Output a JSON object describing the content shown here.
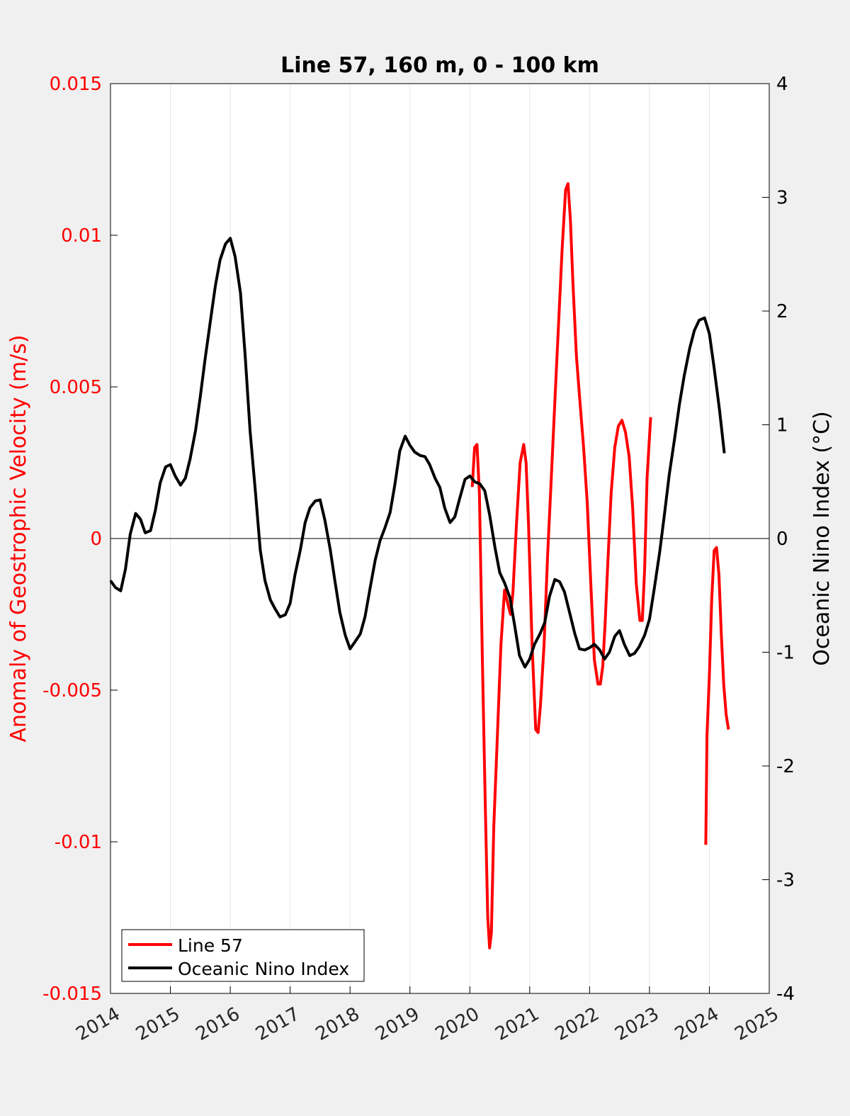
{
  "chart_data": {
    "type": "line",
    "title": "Line 57, 160 m, 0 - 100 km",
    "xlabel": "",
    "ylabel_left": "Anomaly of Geostrophic Velocity (m/s)",
    "ylabel_right": "Oceanic Nino Index (°C)",
    "xlim": [
      2014,
      2025
    ],
    "ylim_left": [
      -0.015,
      0.015
    ],
    "ylim_right": [
      -4,
      4
    ],
    "x_ticks": [
      "2014",
      "2015",
      "2016",
      "2017",
      "2018",
      "2019",
      "2020",
      "2021",
      "2022",
      "2023",
      "2024",
      "2025"
    ],
    "y_left_ticks": [
      "0.015",
      "0.01",
      "0.005",
      "0",
      "-0.005",
      "-0.01",
      "-0.015"
    ],
    "y_right_ticks": [
      "4",
      "3",
      "2",
      "1",
      "0",
      "-1",
      "-2",
      "-3",
      "-4"
    ],
    "grid": "vertical x-grid on",
    "zero_line": true,
    "legend_position": "bottom-left",
    "colors": {
      "line57": "#ff0000",
      "oni": "#000000",
      "left_axis": "#ff0000",
      "right_axis": "#000000"
    },
    "series": [
      {
        "name": "Line 57",
        "axis": "left",
        "color": "#ff0000",
        "segments": [
          {
            "x": [
              2020.04,
              2020.08,
              2020.12,
              2020.16,
              2020.21,
              2020.26,
              2020.3,
              2020.33,
              2020.36,
              2020.4,
              2020.46,
              2020.52,
              2020.58,
              2020.64,
              2020.68,
              2020.72,
              2020.78,
              2020.84,
              2020.9,
              2020.94,
              2020.98,
              2021.04,
              2021.1,
              2021.14,
              2021.18,
              2021.24,
              2021.3,
              2021.36,
              2021.42,
              2021.48,
              2021.54,
              2021.6,
              2021.64,
              2021.68,
              2021.72,
              2021.78,
              2021.84,
              2021.9,
              2021.96,
              2022.02,
              2022.08,
              2022.14,
              2022.18,
              2022.22,
              2022.26,
              2022.3,
              2022.36,
              2022.42,
              2022.48,
              2022.54,
              2022.6,
              2022.66,
              2022.72,
              2022.78,
              2022.84,
              2022.88,
              2022.92,
              2022.96,
              2023.02
            ],
            "y": [
              0.0017,
              0.003,
              0.0031,
              0.0015,
              -0.004,
              -0.009,
              -0.0125,
              -0.0135,
              -0.013,
              -0.0095,
              -0.0065,
              -0.0035,
              -0.0017,
              -0.0022,
              -0.0025,
              -0.0018,
              0.0005,
              0.0025,
              0.0031,
              0.0025,
              0.0005,
              -0.0035,
              -0.0063,
              -0.0064,
              -0.0055,
              -0.0035,
              -0.0005,
              0.002,
              0.0045,
              0.007,
              0.0095,
              0.0115,
              0.0117,
              0.0105,
              0.0085,
              0.006,
              0.0045,
              0.003,
              0.0012,
              -0.0015,
              -0.004,
              -0.0048,
              -0.0048,
              -0.0042,
              -0.0028,
              -0.001,
              0.0015,
              0.003,
              0.0037,
              0.0039,
              0.0035,
              0.0027,
              0.001,
              -0.0015,
              -0.0027,
              -0.0027,
              -0.001,
              0.002,
              0.004
            ]
          },
          {
            "x": [
              2023.94,
              2023.96,
              2024.0,
              2024.04,
              2024.08,
              2024.12,
              2024.16,
              2024.2,
              2024.24,
              2024.28,
              2024.32
            ],
            "y": [
              -0.0101,
              -0.0065,
              -0.0045,
              -0.002,
              -0.0004,
              -0.0003,
              -0.0012,
              -0.0032,
              -0.0048,
              -0.0058,
              -0.0063
            ]
          }
        ]
      },
      {
        "name": "Oceanic Nino Index",
        "axis": "right",
        "color": "#000000",
        "x": [
          2014.0,
          2014.08,
          2014.17,
          2014.25,
          2014.33,
          2014.42,
          2014.5,
          2014.58,
          2014.67,
          2014.75,
          2014.83,
          2014.92,
          2015.0,
          2015.08,
          2015.17,
          2015.25,
          2015.33,
          2015.42,
          2015.5,
          2015.58,
          2015.67,
          2015.75,
          2015.83,
          2015.92,
          2016.0,
          2016.08,
          2016.17,
          2016.25,
          2016.33,
          2016.42,
          2016.5,
          2016.58,
          2016.67,
          2016.75,
          2016.83,
          2016.92,
          2017.0,
          2017.08,
          2017.17,
          2017.25,
          2017.33,
          2017.42,
          2017.5,
          2017.58,
          2017.67,
          2017.75,
          2017.83,
          2017.92,
          2018.0,
          2018.08,
          2018.17,
          2018.25,
          2018.33,
          2018.42,
          2018.5,
          2018.58,
          2018.67,
          2018.75,
          2018.83,
          2018.92,
          2019.0,
          2019.08,
          2019.17,
          2019.25,
          2019.33,
          2019.42,
          2019.5,
          2019.58,
          2019.67,
          2019.75,
          2019.83,
          2019.92,
          2020.0,
          2020.08,
          2020.17,
          2020.25,
          2020.33,
          2020.42,
          2020.5,
          2020.58,
          2020.67,
          2020.75,
          2020.83,
          2020.92,
          2021.0,
          2021.08,
          2021.17,
          2021.25,
          2021.33,
          2021.42,
          2021.5,
          2021.58,
          2021.67,
          2021.75,
          2021.83,
          2021.92,
          2022.0,
          2022.08,
          2022.17,
          2022.25,
          2022.33,
          2022.42,
          2022.5,
          2022.58,
          2022.67,
          2022.75,
          2022.83,
          2022.92,
          2023.0,
          2023.08,
          2023.17,
          2023.25,
          2023.33,
          2023.42,
          2023.5,
          2023.58,
          2023.67,
          2023.75,
          2023.83,
          2023.92,
          2024.0,
          2024.08,
          2024.17,
          2024.25
        ],
        "y": [
          -0.37,
          -0.43,
          -0.46,
          -0.27,
          0.04,
          0.22,
          0.17,
          0.05,
          0.07,
          0.25,
          0.49,
          0.63,
          0.65,
          0.55,
          0.47,
          0.53,
          0.7,
          0.95,
          1.25,
          1.58,
          1.92,
          2.22,
          2.45,
          2.59,
          2.64,
          2.48,
          2.16,
          1.6,
          0.95,
          0.41,
          -0.1,
          -0.37,
          -0.54,
          -0.62,
          -0.69,
          -0.67,
          -0.57,
          -0.32,
          -0.1,
          0.14,
          0.27,
          0.33,
          0.34,
          0.16,
          -0.1,
          -0.38,
          -0.65,
          -0.85,
          -0.97,
          -0.91,
          -0.84,
          -0.69,
          -0.45,
          -0.19,
          -0.02,
          0.09,
          0.23,
          0.48,
          0.77,
          0.9,
          0.82,
          0.76,
          0.73,
          0.72,
          0.65,
          0.53,
          0.45,
          0.27,
          0.14,
          0.19,
          0.35,
          0.52,
          0.55,
          0.5,
          0.48,
          0.42,
          0.21,
          -0.08,
          -0.3,
          -0.39,
          -0.52,
          -0.77,
          -1.03,
          -1.13,
          -1.06,
          -0.93,
          -0.84,
          -0.74,
          -0.51,
          -0.36,
          -0.38,
          -0.47,
          -0.66,
          -0.83,
          -0.97,
          -0.98,
          -0.96,
          -0.93,
          -0.98,
          -1.06,
          -1.0,
          -0.86,
          -0.81,
          -0.93,
          -1.03,
          -1.01,
          -0.95,
          -0.85,
          -0.71,
          -0.44,
          -0.12,
          0.21,
          0.56,
          0.88,
          1.18,
          1.43,
          1.67,
          1.83,
          1.92,
          1.94,
          1.8,
          1.5,
          1.13,
          0.75
        ]
      }
    ]
  },
  "legend": {
    "items": [
      {
        "label": "Line 57",
        "color": "#ff0000"
      },
      {
        "label": "Oceanic Nino Index",
        "color": "#000000"
      }
    ]
  }
}
